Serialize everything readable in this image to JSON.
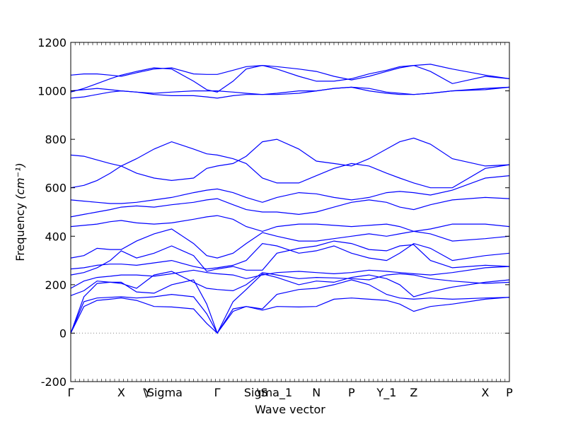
{
  "chart_data": {
    "type": "line",
    "title": "",
    "xlabel": "Wave vector",
    "ylabel": "Frequency",
    "ylabel_unit": "(cm⁻¹)",
    "ylim": [
      -200,
      1200
    ],
    "yticks": [
      -200,
      0,
      200,
      400,
      600,
      800,
      1000,
      1200
    ],
    "xlim": [
      0,
      1
    ],
    "grid": false,
    "legend": "none",
    "zero_line": {
      "y": 0,
      "style": "dotted",
      "color": "#888888"
    },
    "line_color": "#0000ff",
    "high_symmetry_points": [
      {
        "label": "Γ",
        "x": 0.0
      },
      {
        "label": "X",
        "x": 0.115
      },
      {
        "label": "Y",
        "x": 0.175
      },
      {
        "label": "\\Sigma",
        "x": 0.21
      },
      {
        "label": "Γ",
        "x": 0.334
      },
      {
        "label": "\\S",
        "x": 0.437
      },
      {
        "label": "Sigma_1",
        "x": 0.45
      },
      {
        "label": "N",
        "x": 0.56
      },
      {
        "label": "P",
        "x": 0.64
      },
      {
        "label": "Y_1",
        "x": 0.72
      },
      {
        "label": "Z",
        "x": 0.782
      },
      {
        "label": "X",
        "x": 0.945
      },
      {
        "label": "P",
        "x": 1.0
      }
    ],
    "series": [
      {
        "x": [
          0,
          0.03,
          0.06,
          0.09,
          0.115,
          0.15,
          0.19,
          0.23,
          0.28,
          0.31,
          0.334,
          0.37,
          0.4,
          0.437,
          0.47,
          0.52,
          0.56,
          0.6,
          0.64,
          0.68,
          0.72,
          0.75,
          0.782,
          0.82,
          0.87,
          0.945,
          1.0
        ],
        "y": [
          0,
          110,
          135,
          140,
          145,
          135,
          110,
          108,
          100,
          40,
          0,
          90,
          110,
          95,
          110,
          108,
          110,
          140,
          145,
          140,
          135,
          120,
          90,
          110,
          120,
          140,
          148
        ]
      },
      {
        "x": [
          0,
          0.03,
          0.06,
          0.09,
          0.115,
          0.15,
          0.19,
          0.23,
          0.28,
          0.31,
          0.334,
          0.37,
          0.4,
          0.437,
          0.47,
          0.52,
          0.56,
          0.6,
          0.64,
          0.68,
          0.72,
          0.75,
          0.782,
          0.82,
          0.87,
          0.945,
          1.0
        ],
        "y": [
          0,
          130,
          145,
          148,
          150,
          145,
          150,
          160,
          150,
          80,
          0,
          100,
          110,
          100,
          160,
          180,
          185,
          200,
          220,
          200,
          160,
          145,
          140,
          145,
          140,
          145,
          148
        ]
      },
      {
        "x": [
          0,
          0.03,
          0.06,
          0.09,
          0.115,
          0.15,
          0.19,
          0.23,
          0.28,
          0.31,
          0.334,
          0.37,
          0.4,
          0.437,
          0.47,
          0.52,
          0.56,
          0.6,
          0.64,
          0.68,
          0.72,
          0.75,
          0.782,
          0.82,
          0.87,
          0.945,
          1.0
        ],
        "y": [
          0,
          150,
          205,
          210,
          210,
          170,
          165,
          200,
          220,
          120,
          0,
          130,
          180,
          245,
          230,
          200,
          215,
          210,
          230,
          240,
          225,
          200,
          150,
          170,
          190,
          210,
          220
        ]
      },
      {
        "x": [
          0,
          0.03,
          0.06,
          0.09,
          0.115,
          0.15,
          0.19,
          0.23,
          0.28,
          0.31,
          0.334,
          0.37,
          0.4,
          0.437,
          0.47,
          0.52,
          0.56,
          0.6,
          0.64,
          0.68,
          0.72,
          0.75,
          0.782,
          0.82,
          0.87,
          0.945,
          1.0
        ],
        "y": [
          155,
          175,
          215,
          210,
          205,
          185,
          240,
          255,
          210,
          185,
          180,
          175,
          200,
          250,
          240,
          225,
          230,
          228,
          225,
          220,
          240,
          245,
          240,
          225,
          215,
          205,
          210
        ]
      },
      {
        "x": [
          0,
          0.03,
          0.06,
          0.09,
          0.115,
          0.15,
          0.19,
          0.23,
          0.28,
          0.31,
          0.334,
          0.37,
          0.4,
          0.437,
          0.47,
          0.52,
          0.56,
          0.6,
          0.64,
          0.68,
          0.72,
          0.75,
          0.782,
          0.82,
          0.87,
          0.945,
          1.0
        ],
        "y": [
          185,
          215,
          230,
          235,
          240,
          240,
          235,
          245,
          260,
          250,
          245,
          240,
          225,
          240,
          250,
          255,
          250,
          245,
          250,
          260,
          255,
          250,
          245,
          240,
          250,
          270,
          275
        ]
      },
      {
        "x": [
          0,
          0.03,
          0.06,
          0.09,
          0.115,
          0.15,
          0.19,
          0.23,
          0.28,
          0.31,
          0.334,
          0.37,
          0.4,
          0.437,
          0.47,
          0.52,
          0.56,
          0.6,
          0.64,
          0.68,
          0.72,
          0.75,
          0.782,
          0.82,
          0.87,
          0.945,
          1.0
        ],
        "y": [
          240,
          250,
          270,
          300,
          340,
          310,
          330,
          360,
          320,
          255,
          265,
          275,
          260,
          260,
          330,
          350,
          360,
          380,
          370,
          345,
          340,
          360,
          365,
          300,
          270,
          280,
          275
        ]
      },
      {
        "x": [
          0,
          0.03,
          0.06,
          0.09,
          0.115,
          0.15,
          0.19,
          0.23,
          0.28,
          0.31,
          0.334,
          0.37,
          0.4,
          0.437,
          0.47,
          0.52,
          0.56,
          0.6,
          0.64,
          0.68,
          0.72,
          0.75,
          0.782,
          0.82,
          0.87,
          0.945,
          1.0
        ],
        "y": [
          265,
          270,
          280,
          285,
          285,
          280,
          290,
          300,
          275,
          265,
          270,
          280,
          300,
          370,
          360,
          330,
          340,
          360,
          330,
          310,
          300,
          330,
          370,
          350,
          300,
          320,
          330
        ]
      },
      {
        "x": [
          0,
          0.03,
          0.06,
          0.09,
          0.115,
          0.15,
          0.19,
          0.23,
          0.28,
          0.31,
          0.334,
          0.37,
          0.4,
          0.437,
          0.47,
          0.52,
          0.56,
          0.6,
          0.64,
          0.68,
          0.72,
          0.75,
          0.782,
          0.82,
          0.87,
          0.945,
          1.0
        ],
        "y": [
          310,
          320,
          350,
          345,
          345,
          380,
          410,
          430,
          370,
          320,
          310,
          330,
          370,
          415,
          400,
          380,
          380,
          390,
          400,
          410,
          400,
          410,
          420,
          410,
          380,
          390,
          400
        ]
      },
      {
        "x": [
          0,
          0.03,
          0.06,
          0.09,
          0.115,
          0.15,
          0.19,
          0.23,
          0.28,
          0.31,
          0.334,
          0.37,
          0.4,
          0.437,
          0.47,
          0.52,
          0.56,
          0.6,
          0.64,
          0.68,
          0.72,
          0.75,
          0.782,
          0.82,
          0.87,
          0.945,
          1.0
        ],
        "y": [
          440,
          445,
          450,
          460,
          465,
          455,
          450,
          455,
          470,
          480,
          485,
          470,
          440,
          420,
          440,
          450,
          450,
          445,
          440,
          445,
          450,
          440,
          420,
          430,
          450,
          450,
          440
        ]
      },
      {
        "x": [
          0,
          0.03,
          0.06,
          0.09,
          0.115,
          0.15,
          0.19,
          0.23,
          0.28,
          0.31,
          0.334,
          0.37,
          0.4,
          0.437,
          0.47,
          0.52,
          0.56,
          0.6,
          0.64,
          0.68,
          0.72,
          0.75,
          0.782,
          0.82,
          0.87,
          0.945,
          1.0
        ],
        "y": [
          480,
          490,
          500,
          510,
          520,
          525,
          520,
          530,
          540,
          550,
          555,
          530,
          510,
          500,
          500,
          490,
          500,
          520,
          540,
          550,
          540,
          520,
          510,
          530,
          550,
          560,
          555
        ]
      },
      {
        "x": [
          0,
          0.03,
          0.06,
          0.09,
          0.115,
          0.15,
          0.19,
          0.23,
          0.28,
          0.31,
          0.334,
          0.37,
          0.4,
          0.437,
          0.47,
          0.52,
          0.56,
          0.6,
          0.64,
          0.68,
          0.72,
          0.75,
          0.782,
          0.82,
          0.87,
          0.945,
          1.0
        ],
        "y": [
          550,
          545,
          540,
          535,
          535,
          540,
          550,
          560,
          580,
          590,
          595,
          580,
          560,
          540,
          560,
          580,
          575,
          560,
          550,
          560,
          580,
          585,
          580,
          570,
          590,
          640,
          650
        ]
      },
      {
        "x": [
          0,
          0.03,
          0.06,
          0.09,
          0.115,
          0.15,
          0.19,
          0.23,
          0.28,
          0.31,
          0.334,
          0.37,
          0.4,
          0.437,
          0.47,
          0.52,
          0.56,
          0.6,
          0.64,
          0.68,
          0.72,
          0.75,
          0.782,
          0.82,
          0.87,
          0.945,
          1.0
        ],
        "y": [
          600,
          610,
          630,
          660,
          690,
          720,
          760,
          790,
          760,
          740,
          735,
          720,
          700,
          640,
          620,
          620,
          650,
          680,
          700,
          690,
          660,
          640,
          620,
          600,
          600,
          680,
          695
        ]
      },
      {
        "x": [
          0,
          0.03,
          0.06,
          0.09,
          0.115,
          0.15,
          0.19,
          0.23,
          0.28,
          0.31,
          0.334,
          0.37,
          0.4,
          0.437,
          0.47,
          0.52,
          0.56,
          0.6,
          0.64,
          0.68,
          0.72,
          0.75,
          0.782,
          0.82,
          0.87,
          0.945,
          1.0
        ],
        "y": [
          735,
          730,
          715,
          700,
          690,
          660,
          640,
          630,
          640,
          680,
          690,
          700,
          730,
          790,
          800,
          760,
          710,
          700,
          690,
          720,
          760,
          790,
          805,
          780,
          720,
          690,
          695
        ]
      },
      {
        "x": [
          0,
          0.03,
          0.06,
          0.09,
          0.115,
          0.15,
          0.19,
          0.23,
          0.28,
          0.31,
          0.334,
          0.37,
          0.4,
          0.437,
          0.47,
          0.52,
          0.56,
          0.6,
          0.64,
          0.68,
          0.72,
          0.75,
          0.782,
          0.82,
          0.87,
          0.945,
          1.0
        ],
        "y": [
          970,
          975,
          985,
          995,
          1000,
          995,
          985,
          980,
          980,
          975,
          970,
          980,
          985,
          985,
          985,
          990,
          1000,
          1010,
          1015,
          1000,
          990,
          985,
          985,
          990,
          1000,
          1005,
          1015
        ]
      },
      {
        "x": [
          0,
          0.03,
          0.06,
          0.09,
          0.115,
          0.15,
          0.19,
          0.23,
          0.28,
          0.31,
          0.334,
          0.37,
          0.4,
          0.437,
          0.47,
          0.52,
          0.56,
          0.6,
          0.64,
          0.68,
          0.72,
          0.75,
          0.782,
          0.82,
          0.87,
          0.945,
          1.0
        ],
        "y": [
          1000,
          1005,
          1010,
          1005,
          1000,
          995,
          990,
          995,
          1000,
          1000,
          1000,
          995,
          990,
          985,
          990,
          1000,
          1000,
          1010,
          1015,
          1010,
          995,
          990,
          985,
          990,
          1000,
          1010,
          1015
        ]
      },
      {
        "x": [
          0,
          0.03,
          0.06,
          0.09,
          0.115,
          0.15,
          0.19,
          0.23,
          0.28,
          0.31,
          0.334,
          0.37,
          0.4,
          0.437,
          0.47,
          0.52,
          0.56,
          0.6,
          0.64,
          0.68,
          0.72,
          0.75,
          0.782,
          0.82,
          0.87,
          0.945,
          1.0
        ],
        "y": [
          1065,
          1070,
          1070,
          1065,
          1060,
          1075,
          1090,
          1095,
          1070,
          1068,
          1068,
          1085,
          1100,
          1105,
          1100,
          1090,
          1080,
          1060,
          1045,
          1060,
          1080,
          1095,
          1105,
          1110,
          1090,
          1065,
          1050
        ]
      },
      {
        "x": [
          0,
          0.03,
          0.06,
          0.09,
          0.115,
          0.15,
          0.19,
          0.23,
          0.28,
          0.31,
          0.334,
          0.37,
          0.4,
          0.437,
          0.47,
          0.52,
          0.56,
          0.6,
          0.64,
          0.68,
          0.72,
          0.75,
          0.782,
          0.82,
          0.87,
          0.945,
          1.0
        ],
        "y": [
          995,
          1010,
          1030,
          1050,
          1065,
          1080,
          1095,
          1090,
          1040,
          1005,
          995,
          1040,
          1090,
          1105,
          1090,
          1060,
          1040,
          1040,
          1050,
          1070,
          1085,
          1100,
          1105,
          1080,
          1030,
          1060,
          1050
        ]
      }
    ]
  }
}
